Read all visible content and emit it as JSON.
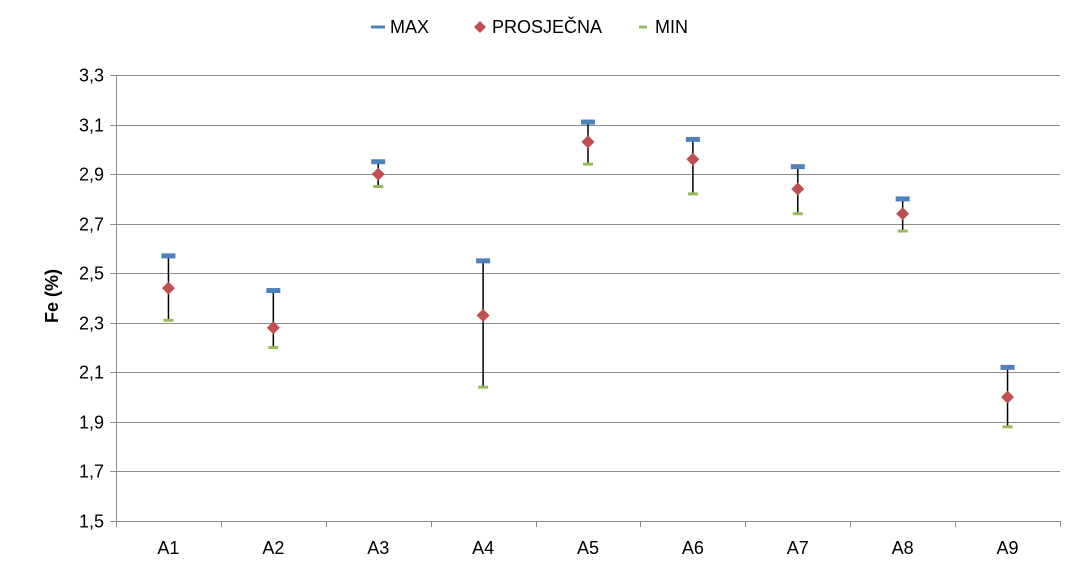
{
  "chart_data": {
    "type": "scatter",
    "title": "",
    "xlabel": "",
    "ylabel": "Fe (%)",
    "ylim": [
      1.5,
      3.3
    ],
    "ytick_step": 0.2,
    "ytick_labels": [
      "1,5",
      "1,7",
      "1,9",
      "2,1",
      "2,3",
      "2,5",
      "2,7",
      "2,9",
      "3,1",
      "3,3"
    ],
    "grid": "horizontal",
    "legend_position": "top",
    "categories": [
      "A1",
      "A2",
      "A3",
      "A4",
      "A5",
      "A6",
      "A7",
      "A8",
      "A9"
    ],
    "series": [
      {
        "name": "MAX",
        "marker": "dash",
        "color": "#4F81BD",
        "values": [
          2.57,
          2.43,
          2.95,
          2.55,
          3.11,
          3.04,
          2.93,
          2.8,
          2.12
        ]
      },
      {
        "name": "PROSJEČNA",
        "marker": "diamond",
        "color": "#C0504D",
        "values": [
          2.44,
          2.28,
          2.9,
          2.33,
          3.03,
          2.96,
          2.84,
          2.74,
          2.0
        ]
      },
      {
        "name": "MIN",
        "marker": "dash",
        "color": "#9BBB59",
        "values": [
          2.31,
          2.2,
          2.85,
          2.04,
          2.94,
          2.82,
          2.74,
          2.67,
          1.88
        ]
      }
    ],
    "hilo_line_color": "#000000"
  }
}
